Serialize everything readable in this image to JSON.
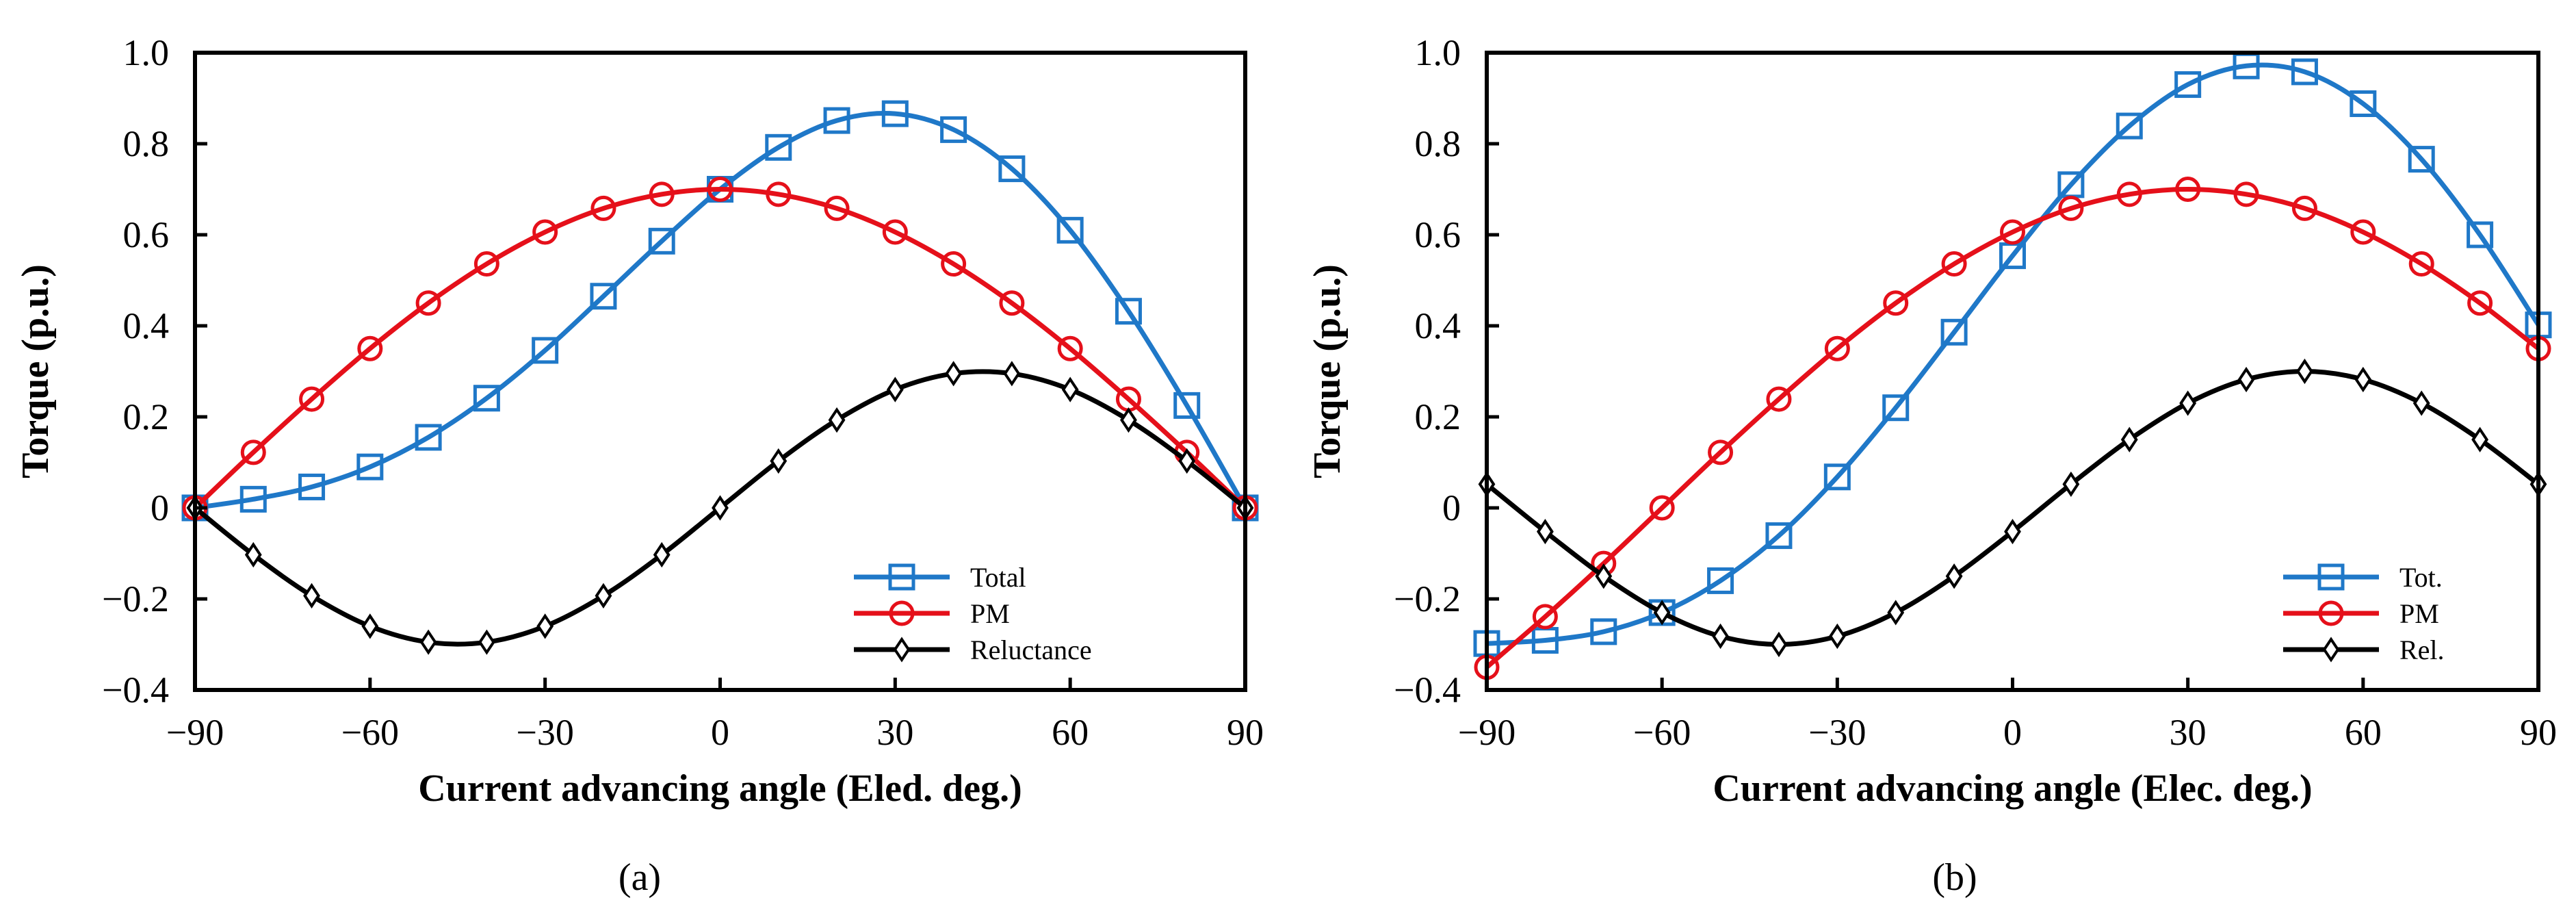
{
  "chart_data": [
    {
      "type": "line",
      "panel_label": "(a)",
      "xlabel": "Current advancing angle (Eled. deg.)",
      "ylabel": "Torque (p.u.)",
      "xlim": [
        -90,
        90
      ],
      "ylim": [
        -0.4,
        1.0
      ],
      "xticks": [
        -90,
        -60,
        -30,
        0,
        30,
        60,
        90
      ],
      "xtick_labels": [
        "−90",
        "−60",
        "−30",
        "0",
        "30",
        "60",
        "90"
      ],
      "yticks": [
        -0.4,
        -0.2,
        0,
        0.2,
        0.4,
        0.6,
        0.8,
        1.0
      ],
      "ytick_labels": [
        "−0.4",
        "−0.2",
        "0",
        "0.2",
        "0.4",
        "0.6",
        "0.8",
        "1.0"
      ],
      "grid": false,
      "legend_position": "bottom-right",
      "x": [
        -90,
        -80,
        -70,
        -60,
        -50,
        -40,
        -30,
        -20,
        -10,
        0,
        10,
        20,
        30,
        40,
        50,
        60,
        70,
        80,
        90
      ],
      "series": [
        {
          "name": "Total",
          "color": "#1F78C8",
          "marker": "square",
          "values": [
            0,
            0.019,
            0.046,
            0.09,
            0.155,
            0.241,
            0.346,
            0.465,
            0.586,
            0.7,
            0.792,
            0.851,
            0.866,
            0.831,
            0.745,
            0.61,
            0.432,
            0.225,
            0
          ]
        },
        {
          "name": "PM",
          "color": "#E5101A",
          "marker": "circle",
          "values": [
            0,
            0.122,
            0.239,
            0.35,
            0.45,
            0.536,
            0.606,
            0.658,
            0.689,
            0.7,
            0.689,
            0.658,
            0.606,
            0.536,
            0.45,
            0.35,
            0.239,
            0.122,
            0
          ]
        },
        {
          "name": "Reluctance",
          "color": "#000000",
          "marker": "diamond",
          "values": [
            0,
            -0.103,
            -0.193,
            -0.26,
            -0.295,
            -0.295,
            -0.26,
            -0.193,
            -0.103,
            0,
            0.103,
            0.193,
            0.26,
            0.295,
            0.295,
            0.26,
            0.193,
            0.103,
            0
          ]
        }
      ]
    },
    {
      "type": "line",
      "panel_label": "(b)",
      "xlabel": "Current advancing angle (Elec. deg.)",
      "ylabel": "Torque (p.u.)",
      "xlim": [
        -90,
        90
      ],
      "ylim": [
        -0.4,
        1.0
      ],
      "xticks": [
        -90,
        -60,
        -30,
        0,
        30,
        60,
        90
      ],
      "xtick_labels": [
        "−90",
        "−60",
        "−30",
        "0",
        "30",
        "60",
        "90"
      ],
      "yticks": [
        -0.4,
        -0.2,
        0,
        0.2,
        0.4,
        0.6,
        0.8,
        1.0
      ],
      "ytick_labels": [
        "−0.4",
        "−0.2",
        "0",
        "0.2",
        "0.4",
        "0.6",
        "0.8",
        "1.0"
      ],
      "grid": false,
      "legend_position": "bottom-right",
      "x": [
        -90,
        -80,
        -70,
        -60,
        -50,
        -40,
        -30,
        -20,
        -10,
        0,
        10,
        20,
        30,
        40,
        50,
        60,
        70,
        80,
        90
      ],
      "series": [
        {
          "name": "Tot.",
          "color": "#1F78C8",
          "marker": "square",
          "values": [
            -0.298,
            -0.291,
            -0.272,
            -0.23,
            -0.16,
            -0.061,
            0.068,
            0.22,
            0.386,
            0.554,
            0.71,
            0.839,
            0.93,
            0.971,
            0.958,
            0.888,
            0.766,
            0.6,
            0.402
          ]
        },
        {
          "name": "PM",
          "color": "#E5101A",
          "marker": "circle",
          "values": [
            -0.35,
            -0.239,
            -0.122,
            0,
            0.122,
            0.239,
            0.35,
            0.45,
            0.536,
            0.606,
            0.658,
            0.689,
            0.7,
            0.689,
            0.658,
            0.606,
            0.536,
            0.45,
            0.35
          ]
        },
        {
          "name": "Rel.",
          "color": "#000000",
          "marker": "diamond",
          "values": [
            0.052,
            -0.052,
            -0.15,
            -0.23,
            -0.282,
            -0.3,
            -0.282,
            -0.23,
            -0.15,
            -0.052,
            0.052,
            0.15,
            0.23,
            0.282,
            0.3,
            0.282,
            0.23,
            0.15,
            0.052
          ]
        }
      ]
    }
  ]
}
